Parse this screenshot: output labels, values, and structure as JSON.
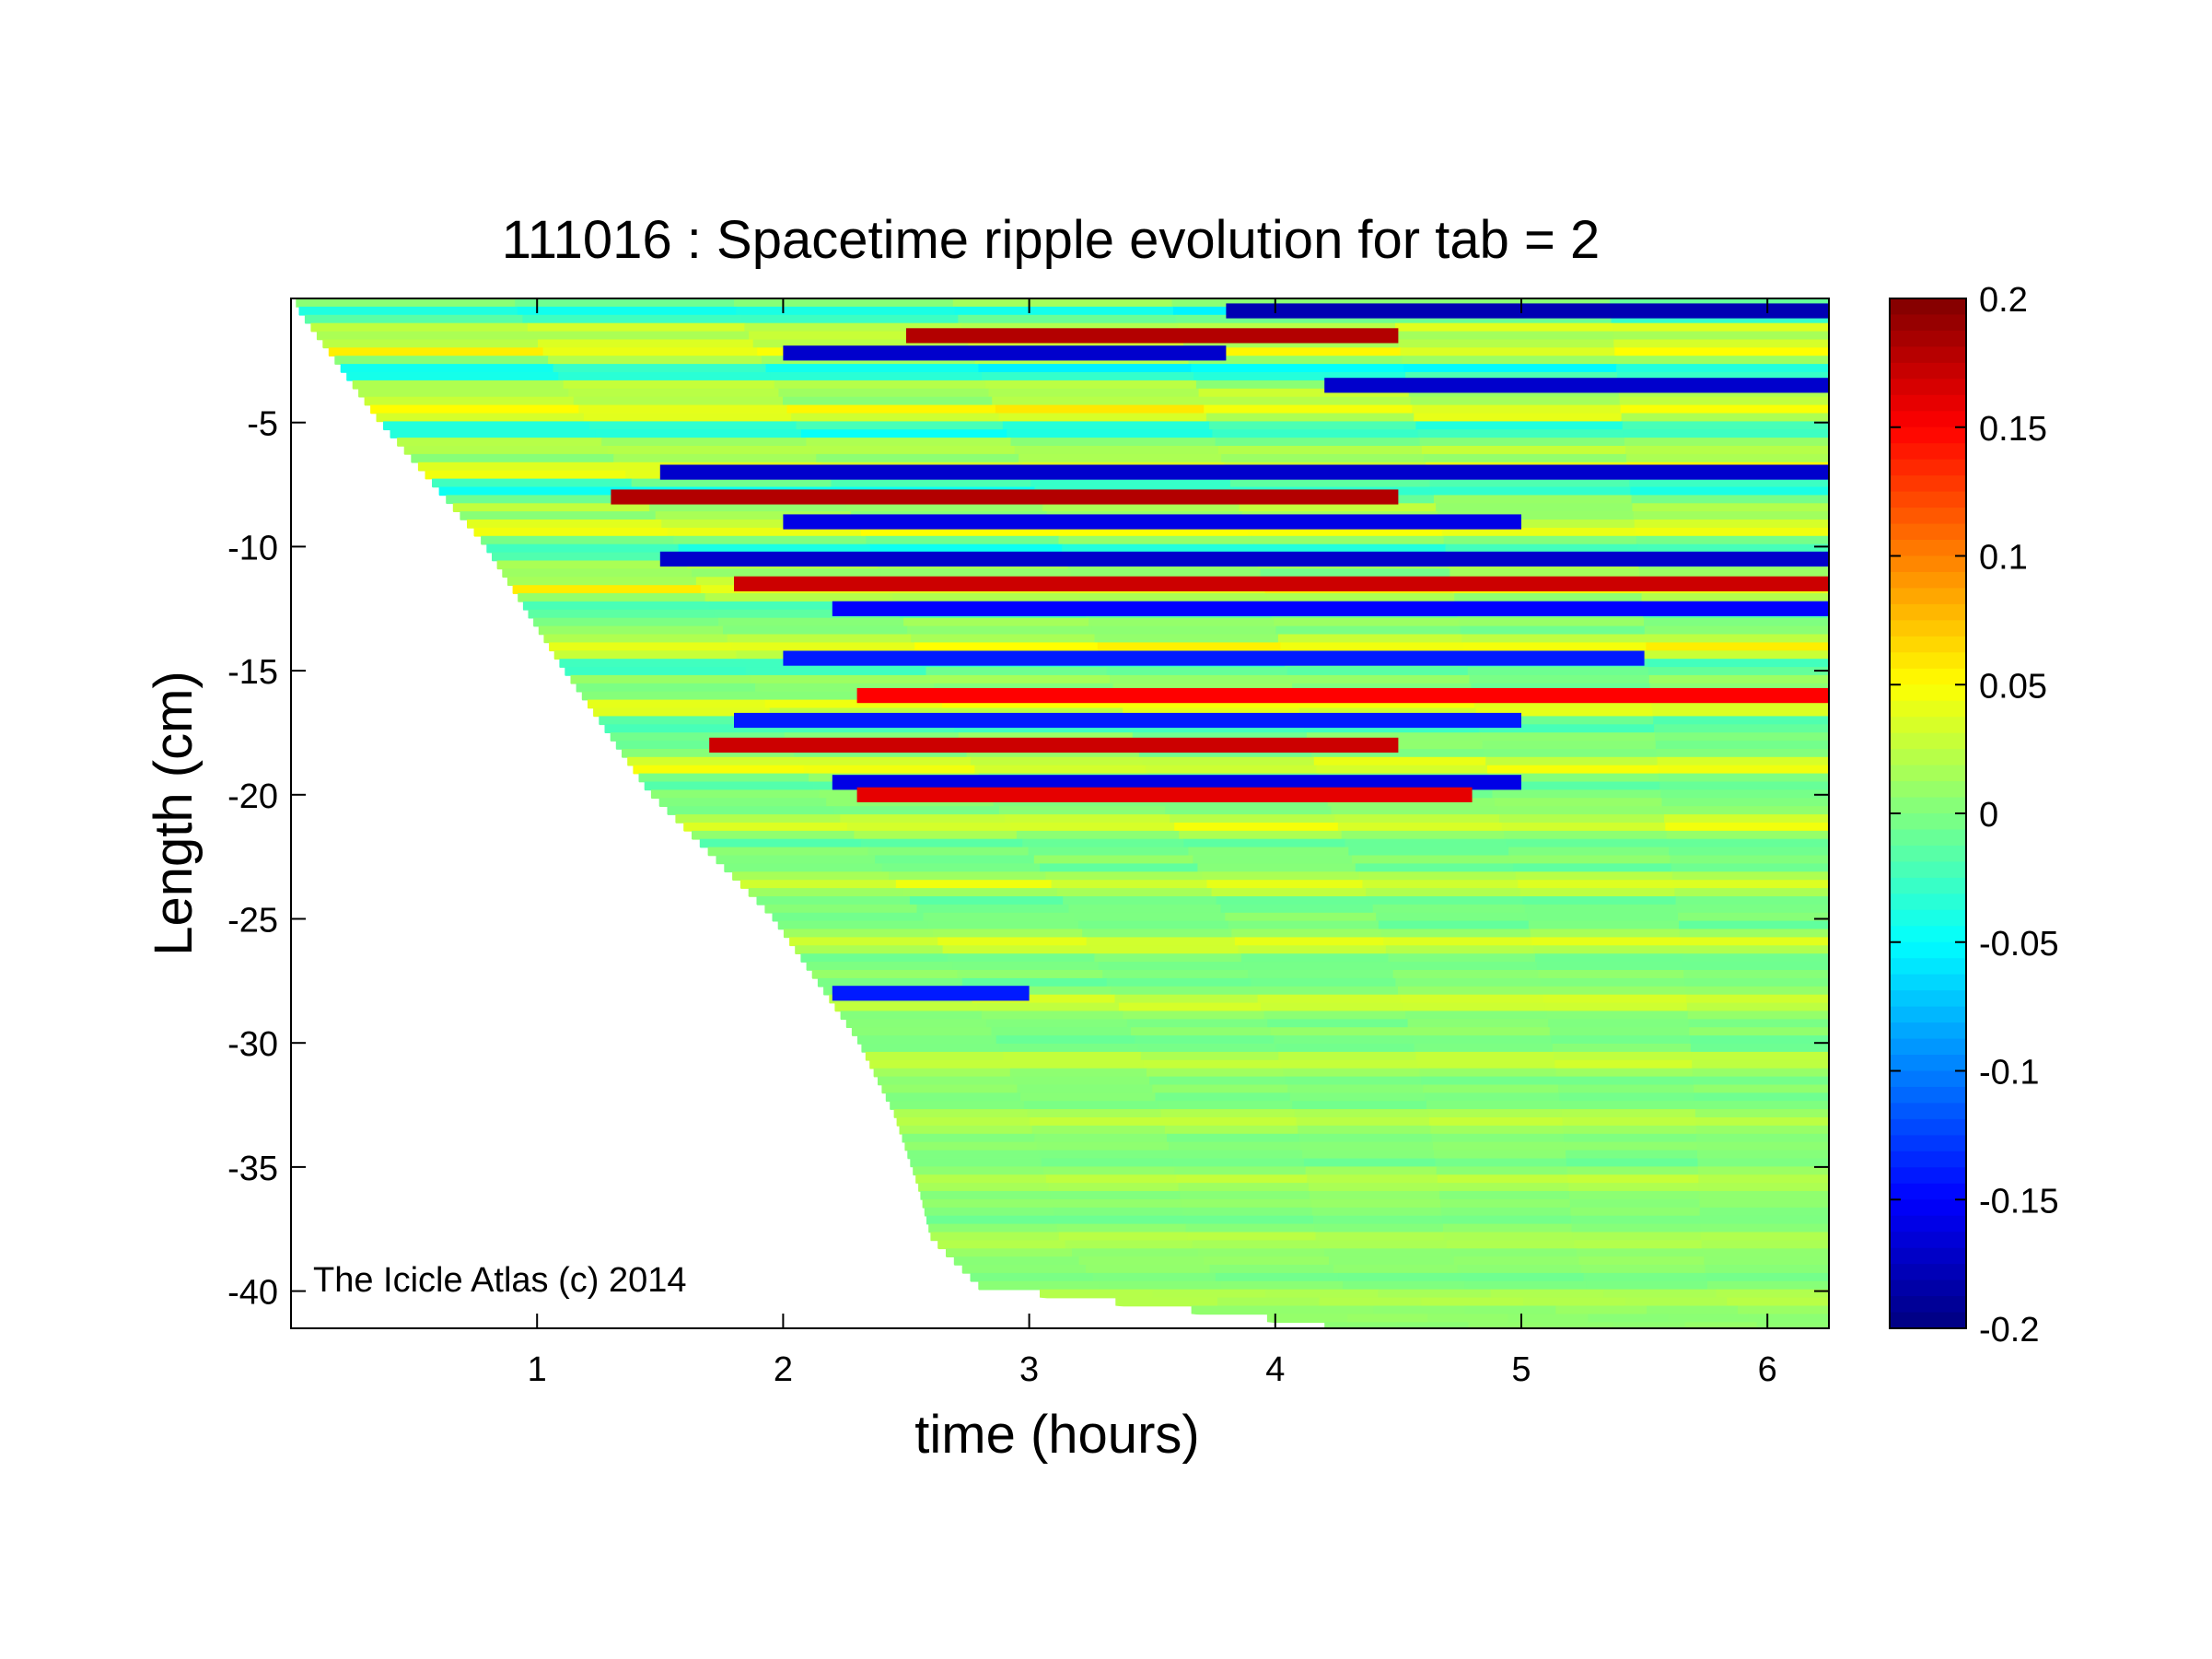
{
  "chart_data": {
    "type": "heatmap",
    "title": "111016 : Spacetime ripple evolution for tab = 2",
    "xlabel": "time (hours)",
    "ylabel": "Length (cm)",
    "xlim": [
      0,
      6.25
    ],
    "ylim": [
      -41.5,
      0
    ],
    "xticks": [
      1,
      2,
      3,
      4,
      5,
      6
    ],
    "yticks": [
      -5,
      -10,
      -15,
      -20,
      -25,
      -30,
      -35,
      -40
    ],
    "colorbar": {
      "colormap": "jet",
      "clim": [
        -0.2,
        0.2
      ],
      "ticks": [
        0.2,
        0.15,
        0.1,
        0.05,
        0,
        -0.05,
        -0.1,
        -0.15,
        -0.2
      ],
      "tick_labels": [
        "0.2",
        "0.15",
        "0.1",
        "0.05",
        "0",
        "-0.05",
        "-0.1",
        "-0.15",
        "-0.2"
      ]
    },
    "annotation": "The Icicle Atlas (c) 2014",
    "growth_front": {
      "description": "left edge of data: time at which each length was first reached",
      "length_cm": [
        -0.5,
        -5,
        -10,
        -15,
        -20,
        -25,
        -30,
        -33,
        -36,
        -38,
        -40,
        -41.5
      ],
      "time_hours": [
        0.02,
        0.35,
        0.78,
        1.1,
        1.45,
        1.95,
        2.3,
        2.45,
        2.55,
        2.6,
        2.8,
        4.2
      ]
    },
    "bands": [
      {
        "length_cm": -0.5,
        "amplitude": -0.18,
        "from_hours": 3.8,
        "to_hours": 6.25
      },
      {
        "length_cm": -1.5,
        "amplitude": 0.18,
        "from_hours": 2.5,
        "to_hours": 4.5
      },
      {
        "length_cm": -2.2,
        "amplitude": -0.17,
        "from_hours": 2.0,
        "to_hours": 3.8
      },
      {
        "length_cm": -3.5,
        "amplitude": -0.17,
        "from_hours": 4.2,
        "to_hours": 6.25
      },
      {
        "length_cm": -7.0,
        "amplitude": -0.17,
        "from_hours": 1.5,
        "to_hours": 6.25
      },
      {
        "length_cm": -8.0,
        "amplitude": 0.18,
        "from_hours": 1.3,
        "to_hours": 4.5
      },
      {
        "length_cm": -9.0,
        "amplitude": -0.16,
        "from_hours": 2.0,
        "to_hours": 5.0
      },
      {
        "length_cm": -10.5,
        "amplitude": -0.17,
        "from_hours": 1.5,
        "to_hours": 6.25
      },
      {
        "length_cm": -11.5,
        "amplitude": 0.17,
        "from_hours": 1.8,
        "to_hours": 6.25
      },
      {
        "length_cm": -12.5,
        "amplitude": -0.15,
        "from_hours": 2.2,
        "to_hours": 6.25
      },
      {
        "length_cm": -14.5,
        "amplitude": -0.14,
        "from_hours": 2.0,
        "to_hours": 5.5
      },
      {
        "length_cm": -16.0,
        "amplitude": 0.15,
        "from_hours": 2.3,
        "to_hours": 6.25
      },
      {
        "length_cm": -17.0,
        "amplitude": -0.14,
        "from_hours": 1.8,
        "to_hours": 5.0
      },
      {
        "length_cm": -18.0,
        "amplitude": 0.17,
        "from_hours": 1.7,
        "to_hours": 4.5
      },
      {
        "length_cm": -19.5,
        "amplitude": -0.16,
        "from_hours": 2.2,
        "to_hours": 5.0
      },
      {
        "length_cm": -20.0,
        "amplitude": 0.16,
        "from_hours": 2.3,
        "to_hours": 4.8
      },
      {
        "length_cm": -28.0,
        "amplitude": -0.14,
        "from_hours": 2.2,
        "to_hours": 3.0
      }
    ]
  }
}
